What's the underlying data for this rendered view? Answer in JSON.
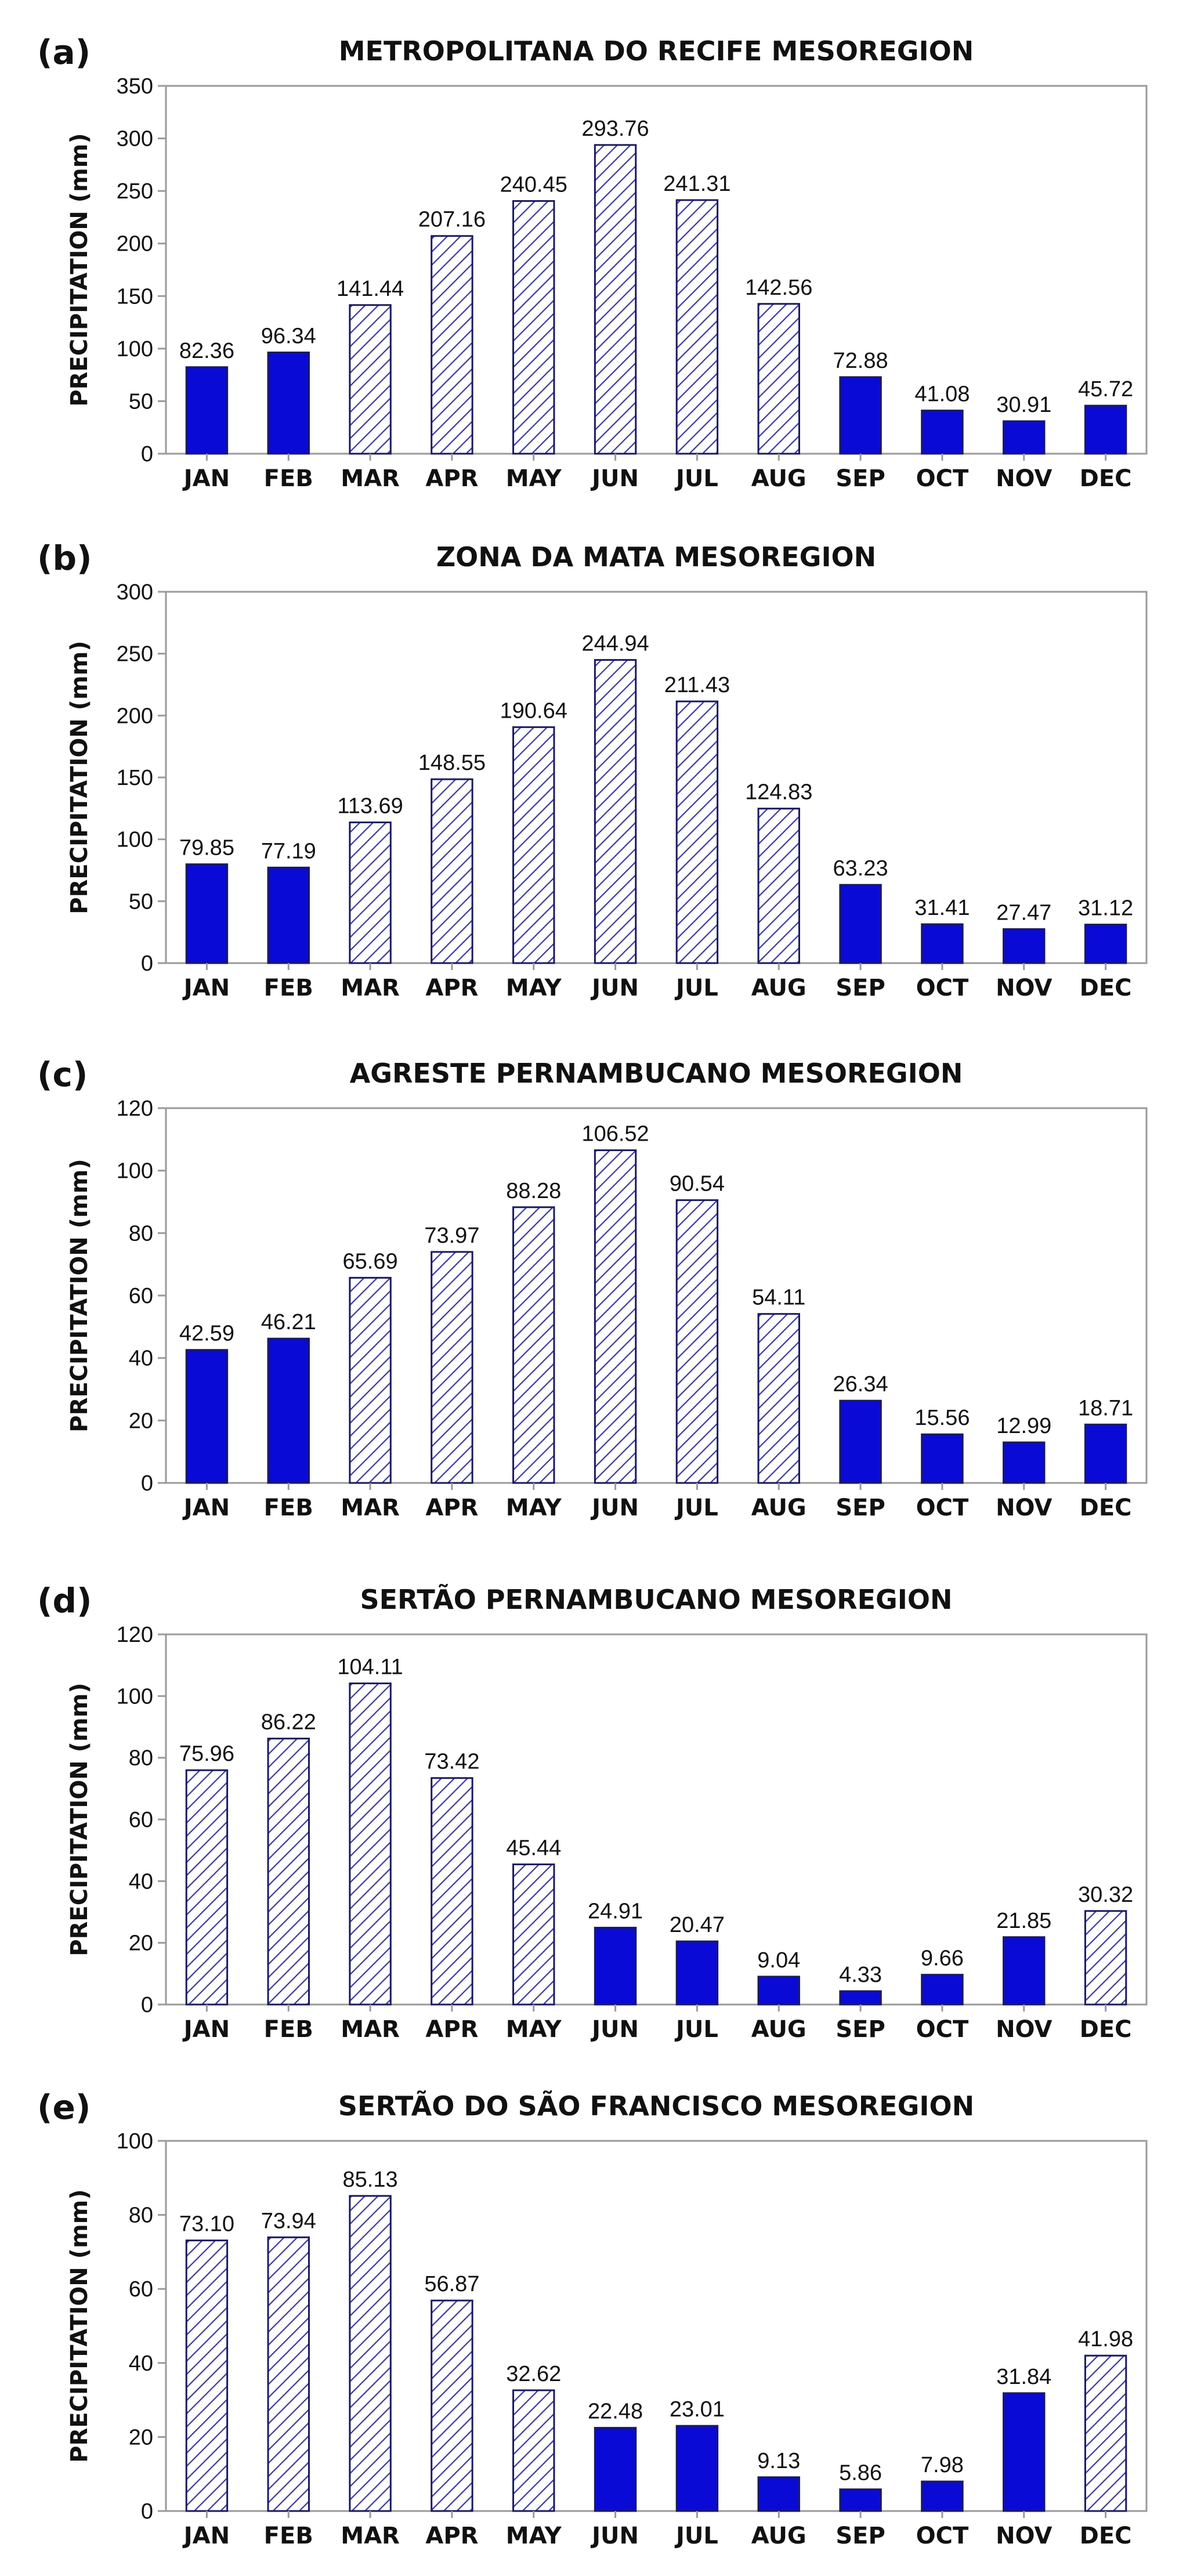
{
  "chart_data": [
    {
      "panel_label": "(a)",
      "type": "bar",
      "title": "METROPOLITANA DO RECIFE MESOREGION",
      "ylabel": "PRECIPITATION (mm)",
      "xlabel": "",
      "ylim": [
        0,
        350
      ],
      "yticks": [
        "0",
        "50",
        "100",
        "150",
        "200",
        "250",
        "300",
        "350"
      ],
      "grid": false,
      "categories": [
        "JAN",
        "FEB",
        "MAR",
        "APR",
        "MAY",
        "JUN",
        "JUL",
        "AUG",
        "SEP",
        "OCT",
        "NOV",
        "DEC"
      ],
      "values": [
        82.36,
        96.34,
        141.44,
        207.16,
        240.45,
        293.76,
        241.31,
        142.56,
        72.88,
        41.08,
        30.91,
        45.72
      ],
      "value_labels": [
        "82.36",
        "96.34",
        "141.44",
        "207.16",
        "240.45",
        "293.76",
        "241.31",
        "142.56",
        "72.88",
        "41.08",
        "30.91",
        "45.72"
      ],
      "bar_fill": [
        "solid",
        "solid",
        "hatched",
        "hatched",
        "hatched",
        "hatched",
        "hatched",
        "hatched",
        "solid",
        "solid",
        "solid",
        "solid"
      ]
    },
    {
      "panel_label": "(b)",
      "type": "bar",
      "title": "ZONA DA MATA MESOREGION",
      "ylabel": "PRECIPITATION (mm)",
      "xlabel": "",
      "ylim": [
        0,
        300
      ],
      "yticks": [
        "0",
        "50",
        "100",
        "150",
        "200",
        "250",
        "300"
      ],
      "grid": false,
      "categories": [
        "JAN",
        "FEB",
        "MAR",
        "APR",
        "MAY",
        "JUN",
        "JUL",
        "AUG",
        "SEP",
        "OCT",
        "NOV",
        "DEC"
      ],
      "values": [
        79.85,
        77.19,
        113.69,
        148.55,
        190.64,
        244.94,
        211.43,
        124.83,
        63.23,
        31.41,
        27.47,
        31.12
      ],
      "value_labels": [
        "79.85",
        "77.19",
        "113.69",
        "148.55",
        "190.64",
        "244.94",
        "211.43",
        "124.83",
        "63.23",
        "31.41",
        "27.47",
        "31.12"
      ],
      "bar_fill": [
        "solid",
        "solid",
        "hatched",
        "hatched",
        "hatched",
        "hatched",
        "hatched",
        "hatched",
        "solid",
        "solid",
        "solid",
        "solid"
      ]
    },
    {
      "panel_label": "(c)",
      "type": "bar",
      "title": "AGRESTE PERNAMBUCANO MESOREGION",
      "ylabel": "PRECIPITATION (mm)",
      "xlabel": "",
      "ylim": [
        0,
        120
      ],
      "yticks": [
        "0",
        "20",
        "40",
        "60",
        "80",
        "100",
        "120"
      ],
      "grid": false,
      "categories": [
        "JAN",
        "FEB",
        "MAR",
        "APR",
        "MAY",
        "JUN",
        "JUL",
        "AUG",
        "SEP",
        "OCT",
        "NOV",
        "DEC"
      ],
      "values": [
        42.59,
        46.21,
        65.69,
        73.97,
        88.28,
        106.52,
        90.54,
        54.11,
        26.34,
        15.56,
        12.99,
        18.71
      ],
      "value_labels": [
        "42.59",
        "46.21",
        "65.69",
        "73.97",
        "88.28",
        "106.52",
        "90.54",
        "54.11",
        "26.34",
        "15.56",
        "12.99",
        "18.71"
      ],
      "bar_fill": [
        "solid",
        "solid",
        "hatched",
        "hatched",
        "hatched",
        "hatched",
        "hatched",
        "hatched",
        "solid",
        "solid",
        "solid",
        "solid"
      ]
    },
    {
      "panel_label": "(d)",
      "type": "bar",
      "title": "SERTÃO PERNAMBUCANO MESOREGION",
      "ylabel": "PRECIPITATION (mm)",
      "xlabel": "",
      "ylim": [
        0,
        120
      ],
      "yticks": [
        "0",
        "20",
        "40",
        "60",
        "80",
        "100",
        "120"
      ],
      "grid": false,
      "categories": [
        "JAN",
        "FEB",
        "MAR",
        "APR",
        "MAY",
        "JUN",
        "JUL",
        "AUG",
        "SEP",
        "OCT",
        "NOV",
        "DEC"
      ],
      "values": [
        75.96,
        86.22,
        104.11,
        73.42,
        45.44,
        24.91,
        20.47,
        9.04,
        4.33,
        9.66,
        21.85,
        30.32
      ],
      "value_labels": [
        "75.96",
        "86.22",
        "104.11",
        "73.42",
        "45.44",
        "24.91",
        "20.47",
        "9.04",
        "4.33",
        "9.66",
        "21.85",
        "30.32"
      ],
      "bar_fill": [
        "hatched",
        "hatched",
        "hatched",
        "hatched",
        "hatched",
        "solid",
        "solid",
        "solid",
        "solid",
        "solid",
        "solid",
        "hatched"
      ]
    },
    {
      "panel_label": "(e)",
      "type": "bar",
      "title": "SERTÃO DO SÃO FRANCISCO MESOREGION",
      "ylabel": "PRECIPITATION (mm)",
      "xlabel": "",
      "ylim": [
        0,
        100
      ],
      "yticks": [
        "0",
        "20",
        "40",
        "60",
        "80",
        "100"
      ],
      "grid": false,
      "categories": [
        "JAN",
        "FEB",
        "MAR",
        "APR",
        "MAY",
        "JUN",
        "JUL",
        "AUG",
        "SEP",
        "OCT",
        "NOV",
        "DEC"
      ],
      "values": [
        73.1,
        73.94,
        85.13,
        56.87,
        32.62,
        22.48,
        23.01,
        9.13,
        5.86,
        7.98,
        31.84,
        41.98
      ],
      "value_labels": [
        "73.10",
        "73.94",
        "85.13",
        "56.87",
        "32.62",
        "22.48",
        "23.01",
        "9.13",
        "5.86",
        "7.98",
        "31.84",
        "41.98"
      ],
      "bar_fill": [
        "hatched",
        "hatched",
        "hatched",
        "hatched",
        "hatched",
        "solid",
        "solid",
        "solid",
        "solid",
        "solid",
        "solid",
        "hatched"
      ]
    }
  ],
  "colors": {
    "bar_solid": "#0a0ad6",
    "bar_hatch": "#3b3ba0",
    "bar_outline": "#1a1a60",
    "axis": "#9a9a9a",
    "text": "#111111"
  }
}
